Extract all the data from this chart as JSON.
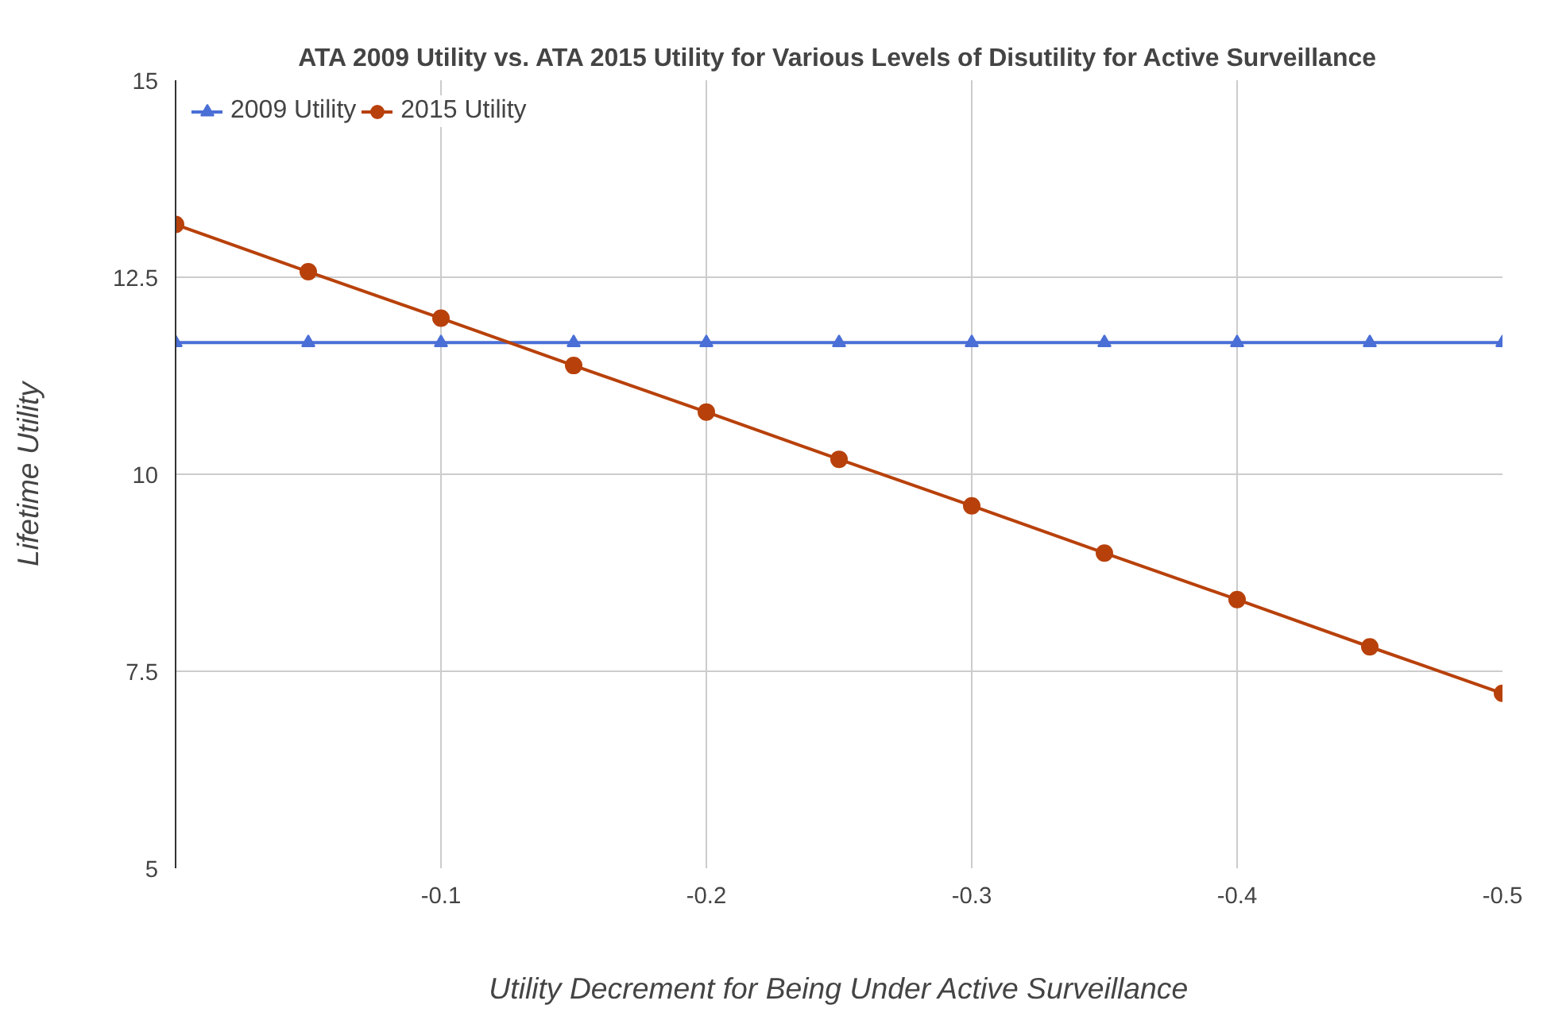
{
  "chart_data": {
    "type": "line",
    "title": "ATA 2009 Utility vs. ATA 2015 Utility for Various Levels of Disutility for Active Surveillance",
    "xlabel": "Utility Decrement for Being Under Active Surveillance",
    "ylabel": "Lifetime Utility",
    "x": [
      0,
      -0.05,
      -0.1,
      -0.15,
      -0.2,
      -0.25,
      -0.3,
      -0.35,
      -0.4,
      -0.45,
      -0.5
    ],
    "series": [
      {
        "name": "2009 Utility",
        "color": "#4a6fd6",
        "marker": "triangle",
        "values": [
          11.67,
          11.67,
          11.67,
          11.67,
          11.67,
          11.67,
          11.67,
          11.67,
          11.67,
          11.67,
          11.67
        ]
      },
      {
        "name": "2015 Utility",
        "color": "#b8410b",
        "marker": "circle",
        "values": [
          13.17,
          12.57,
          11.98,
          11.38,
          10.79,
          10.19,
          9.6,
          9.0,
          8.41,
          7.81,
          7.22
        ]
      }
    ],
    "xlim": [
      0,
      -0.5
    ],
    "xticks": [
      -0.1,
      -0.2,
      -0.3,
      -0.4,
      -0.5
    ],
    "ylim": [
      5,
      15
    ],
    "yticks": [
      5,
      7.5,
      10,
      12.5,
      15
    ],
    "grid": true,
    "legend": "top left",
    "line_style": "solid"
  }
}
